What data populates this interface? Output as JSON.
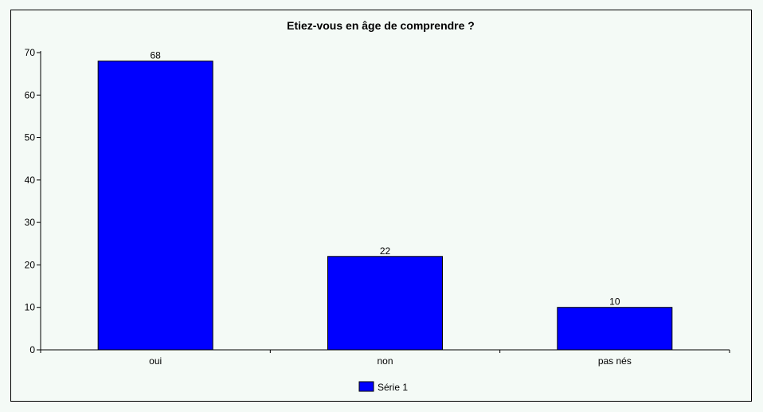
{
  "chart_data": {
    "type": "bar",
    "title": "Etiez-vous en âge de comprendre ?",
    "categories": [
      "oui",
      "non",
      "pas nés"
    ],
    "series": [
      {
        "name": "Série 1",
        "values": [
          68,
          22,
          10
        ],
        "color": "#0000ff"
      }
    ],
    "data_labels": [
      "68",
      "22",
      "10"
    ],
    "ylim": [
      0,
      70
    ],
    "yticks": [
      0,
      10,
      20,
      30,
      40,
      50,
      60,
      70
    ],
    "grid": false,
    "legend": "bottom",
    "background": "#f4faf6",
    "bar_border": "#000000"
  }
}
